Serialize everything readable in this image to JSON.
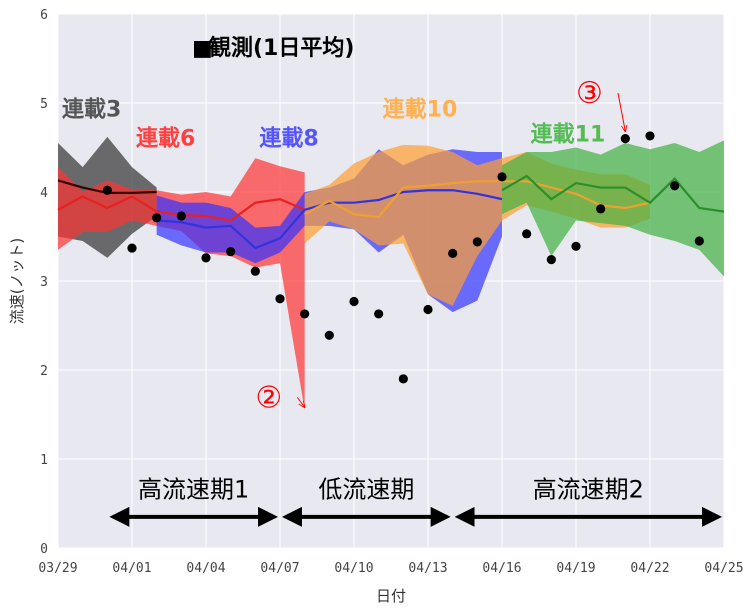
{
  "chart_data": {
    "type": "line",
    "xlabel": "日付",
    "ylabel": "流速(ノット)",
    "ylim": [
      0,
      6
    ],
    "yticks": [
      "0",
      "1",
      "2",
      "3",
      "4",
      "5",
      "6"
    ],
    "xlim": [
      "03/29",
      "04/25"
    ],
    "xticks": [
      "03/29",
      "04/01",
      "04/04",
      "04/07",
      "04/10",
      "04/13",
      "04/16",
      "04/19",
      "04/22",
      "04/25"
    ],
    "grid": true,
    "background_color": "#e8e8f0",
    "observations": {
      "name": "観測(1日平均)",
      "color": "#000000",
      "points": [
        {
          "x": "03/31",
          "y": 4.02
        },
        {
          "x": "04/01",
          "y": 3.37
        },
        {
          "x": "04/02",
          "y": 3.71
        },
        {
          "x": "04/03",
          "y": 3.73
        },
        {
          "x": "04/04",
          "y": 3.26
        },
        {
          "x": "04/05",
          "y": 3.33
        },
        {
          "x": "04/06",
          "y": 3.11
        },
        {
          "x": "04/07",
          "y": 2.8
        },
        {
          "x": "04/08",
          "y": 2.63
        },
        {
          "x": "04/09",
          "y": 2.39
        },
        {
          "x": "04/10",
          "y": 2.77
        },
        {
          "x": "04/11",
          "y": 2.63
        },
        {
          "x": "04/12",
          "y": 1.9
        },
        {
          "x": "04/13",
          "y": 2.68
        },
        {
          "x": "04/14",
          "y": 3.31
        },
        {
          "x": "04/15",
          "y": 3.44
        },
        {
          "x": "04/16",
          "y": 4.17
        },
        {
          "x": "04/17",
          "y": 3.53
        },
        {
          "x": "04/18",
          "y": 3.24
        },
        {
          "x": "04/19",
          "y": 3.39
        },
        {
          "x": "04/20",
          "y": 3.81
        },
        {
          "x": "04/21",
          "y": 4.6
        },
        {
          "x": "04/22",
          "y": 4.63
        },
        {
          "x": "04/23",
          "y": 4.07
        },
        {
          "x": "04/24",
          "y": 3.45
        }
      ]
    },
    "series": [
      {
        "name": "連載3",
        "line_color": "#3a0000",
        "band_color": "#333333",
        "x": [
          "03/29",
          "03/30",
          "03/31",
          "04/01",
          "04/02"
        ],
        "values": [
          4.13,
          4.05,
          3.99,
          3.99,
          4.0
        ],
        "upper": [
          4.55,
          4.28,
          4.62,
          4.28,
          4.05
        ],
        "lower": [
          3.5,
          3.45,
          3.26,
          3.53,
          3.73
        ]
      },
      {
        "name": "連載6",
        "line_color": "#e82020",
        "band_color": "#ff3333",
        "x": [
          "03/29",
          "03/30",
          "03/31",
          "04/01",
          "04/02",
          "04/03",
          "04/04",
          "04/05",
          "04/06",
          "04/07",
          "04/08"
        ],
        "values": [
          3.8,
          3.95,
          3.82,
          3.95,
          3.78,
          3.74,
          3.73,
          3.68,
          3.88,
          3.92,
          3.8
        ],
        "upper": [
          4.28,
          4.0,
          4.13,
          4.03,
          4.02,
          3.97,
          4.0,
          3.95,
          4.38,
          4.29,
          4.22
        ],
        "lower": [
          3.35,
          3.55,
          3.55,
          3.68,
          3.62,
          3.56,
          3.31,
          3.28,
          3.15,
          3.2,
          1.55
        ]
      },
      {
        "name": "連載8",
        "line_color": "#3333dd",
        "band_color": "#3333ff",
        "x": [
          "04/02",
          "04/03",
          "04/04",
          "04/05",
          "04/06",
          "04/07",
          "04/08",
          "04/09",
          "04/10",
          "04/11",
          "04/12",
          "04/13",
          "04/14",
          "04/15",
          "04/16"
        ],
        "values": [
          3.68,
          3.66,
          3.6,
          3.62,
          3.37,
          3.48,
          3.8,
          3.88,
          3.88,
          3.91,
          4.0,
          4.02,
          4.02,
          3.98,
          3.92
        ],
        "upper": [
          3.96,
          3.88,
          3.88,
          3.82,
          3.6,
          3.62,
          4.0,
          4.05,
          4.15,
          4.48,
          4.3,
          4.42,
          4.48,
          4.45,
          4.45
        ],
        "lower": [
          3.52,
          3.4,
          3.32,
          3.32,
          3.2,
          3.32,
          3.62,
          3.62,
          3.58,
          3.32,
          3.52,
          2.85,
          2.65,
          2.78,
          3.5
        ]
      },
      {
        "name": "連載10",
        "line_color": "#f0a030",
        "band_color": "#ffa030",
        "x": [
          "04/08",
          "04/09",
          "04/10",
          "04/11",
          "04/12",
          "04/13",
          "04/14",
          "04/15",
          "04/16",
          "04/17",
          "04/18",
          "04/19",
          "04/20",
          "04/21",
          "04/22"
        ],
        "values": [
          3.75,
          3.9,
          3.75,
          3.72,
          4.05,
          4.07,
          4.1,
          4.12,
          4.12,
          4.12,
          4.05,
          3.98,
          3.85,
          3.82,
          3.88
        ],
        "upper": [
          3.98,
          4.08,
          4.32,
          4.45,
          4.53,
          4.52,
          4.45,
          4.3,
          4.38,
          4.45,
          4.32,
          4.25,
          4.2,
          4.2,
          4.08
        ],
        "lower": [
          3.42,
          3.67,
          3.58,
          3.4,
          3.42,
          2.85,
          2.72,
          3.28,
          3.68,
          3.85,
          3.78,
          3.7,
          3.6,
          3.6,
          3.7
        ]
      },
      {
        "name": "連載11",
        "line_color": "#2a8f2a",
        "band_color": "#40b040",
        "x": [
          "04/16",
          "04/17",
          "04/18",
          "04/19",
          "04/20",
          "04/21",
          "04/22",
          "04/23",
          "04/24",
          "04/25"
        ],
        "values": [
          4.02,
          4.18,
          3.92,
          4.1,
          4.05,
          4.05,
          3.88,
          4.15,
          3.82,
          3.78
        ],
        "upper": [
          4.3,
          4.45,
          4.45,
          4.5,
          4.42,
          4.55,
          4.48,
          4.55,
          4.45,
          4.58
        ],
        "lower": [
          3.75,
          3.88,
          3.28,
          3.68,
          3.65,
          3.62,
          3.52,
          3.45,
          3.35,
          3.05
        ]
      }
    ],
    "labels": [
      {
        "text": "連載3",
        "color": "#555555",
        "x": "03/29",
        "y": 4.85
      },
      {
        "text": "連載6",
        "color": "#ff4040",
        "x": "04/01",
        "y": 4.52
      },
      {
        "text": "連載8",
        "color": "#5555ff",
        "x": "04/06",
        "y": 4.52
      },
      {
        "text": "連載10",
        "color": "#ffb050",
        "x": "04/11",
        "y": 4.85
      },
      {
        "text": "連載11",
        "color": "#55bb55",
        "x": "04/17",
        "y": 4.57
      }
    ],
    "periods": [
      {
        "label": "高流速期1",
        "from": "03/31",
        "to": "04/07"
      },
      {
        "label": "低流速期",
        "from": "04/07",
        "to": "04/14"
      },
      {
        "label": "高流速期2",
        "from": "04/14",
        "to": "04/25"
      }
    ],
    "annotations": [
      {
        "text": "②",
        "color": "#ff0000",
        "x": "04/06",
        "y": 1.58,
        "arrow_to": {
          "x": "04/08",
          "y": 1.58
        }
      },
      {
        "text": "③",
        "color": "#ff0000",
        "x": "04/19",
        "y": 5.0,
        "arrow_to": {
          "x": "04/21",
          "y": 4.68
        }
      }
    ],
    "legend": {
      "marker": "■",
      "label": "観測(1日平均)",
      "placement": "top-center"
    }
  }
}
